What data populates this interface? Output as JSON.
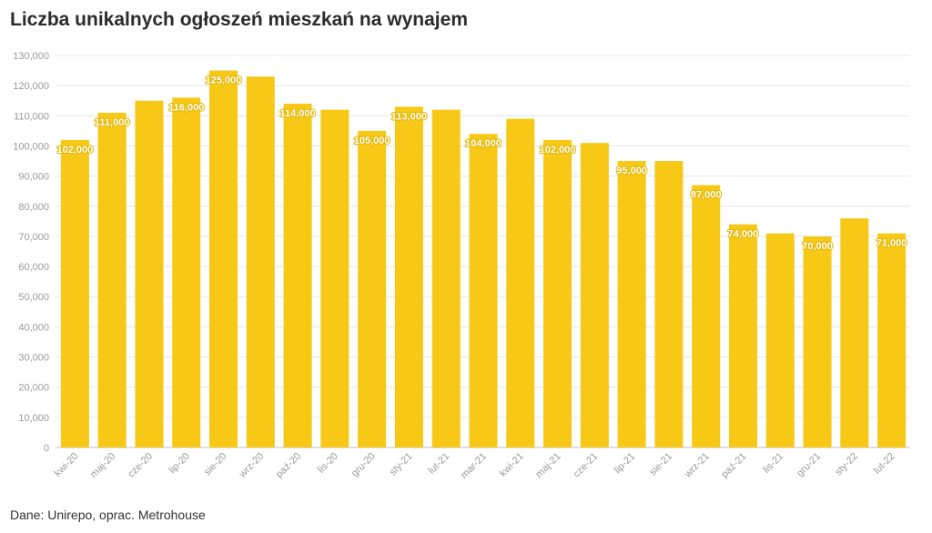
{
  "chart_data": {
    "type": "bar",
    "title": "Liczba unikalnych ogłoszeń mieszkań na wynajem",
    "source": "Dane: Unirepo, oprac. Metrohouse",
    "categories": [
      "kwi-20",
      "maj-20",
      "cze-20",
      "lip-20",
      "sie-20",
      "wrz-20",
      "paź-20",
      "lis-20",
      "gru-20",
      "sty-21",
      "lut-21",
      "mar-21",
      "kwi-21",
      "maj-21",
      "cze-21",
      "lip-21",
      "sie-21",
      "wrz-21",
      "paź-21",
      "lis-21",
      "gru-21",
      "sty-22",
      "lut-22"
    ],
    "values": [
      102000,
      111000,
      115000,
      116000,
      125000,
      123000,
      114000,
      112000,
      105000,
      113000,
      112000,
      104000,
      109000,
      102000,
      101000,
      95000,
      95000,
      87000,
      74000,
      71000,
      70000,
      76000,
      71000
    ],
    "data_labels": [
      "102,000",
      "111,000",
      null,
      "116,000",
      "125,000",
      null,
      "114,000",
      null,
      "105,000",
      "113,000",
      null,
      "104,000",
      null,
      "102,000",
      null,
      "95,000",
      null,
      "87,000",
      "74,000",
      null,
      "70,000",
      null,
      "71,000"
    ],
    "yticks": [
      "0",
      "10,000",
      "20,000",
      "30,000",
      "40,000",
      "50,000",
      "60,000",
      "70,000",
      "80,000",
      "90,000",
      "100,000",
      "110,000",
      "120,000",
      "130,000"
    ],
    "ylim": [
      0,
      130000
    ],
    "grid": true,
    "bar_color": "#f7c815",
    "xlabel": "",
    "ylabel": ""
  }
}
